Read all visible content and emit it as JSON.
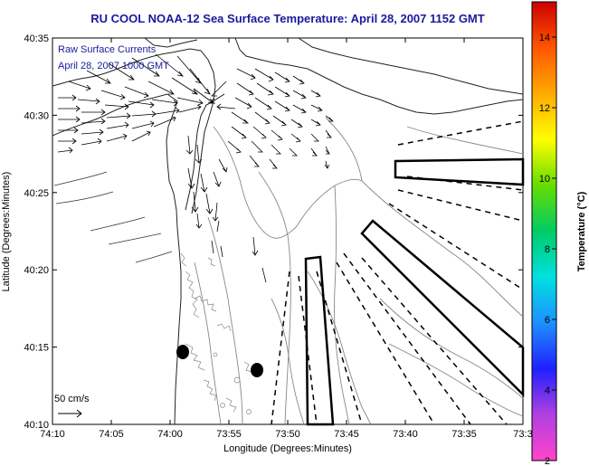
{
  "title": "RU COOL  NOAA-12  Sea Surface Temperature:  April 28, 2007 1152 GMT",
  "inset": {
    "line1": "Raw Surface Currents",
    "line2": "April 28, 2007 1000 GMT"
  },
  "axes": {
    "xlabel": "Longitude (Degrees:Minutes)",
    "ylabel": "Latitude (Degrees:Minutes)",
    "x_ticks": [
      "74:10",
      "74:05",
      "74:00",
      "73:55",
      "73:50",
      "73:45",
      "73:40",
      "73:35",
      "73:3"
    ],
    "y_ticks": [
      "40:35",
      "40:30",
      "40:25",
      "40:20",
      "40:15",
      "40:10"
    ]
  },
  "scale_bar": {
    "label": "50 cm/s"
  },
  "colorbar": {
    "label": "Temperature (°C)",
    "ticks": [
      "14",
      "12",
      "10",
      "8",
      "6",
      "4",
      "2"
    ],
    "min": 2,
    "max": 15,
    "colors": [
      "#ff44cc",
      "#b040e0",
      "#2020ff",
      "#1e90ff",
      "#00e0e0",
      "#00cc66",
      "#66dd00",
      "#ffff00",
      "#ffaa00",
      "#ff5500",
      "#cc0000"
    ]
  }
}
